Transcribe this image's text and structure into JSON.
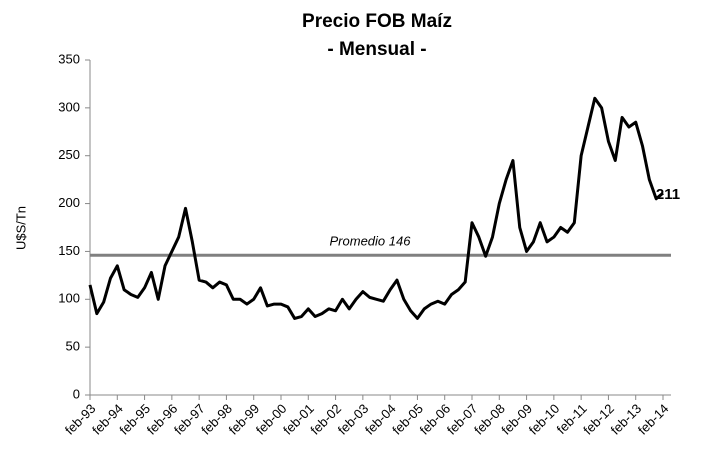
{
  "chart_data": {
    "type": "line",
    "title": "Precio FOB Maíz",
    "subtitle": "- Mensual -",
    "y_label": "U$S/Tn",
    "categories": [
      "feb-93",
      null,
      null,
      null,
      "feb-94",
      null,
      null,
      null,
      "feb-95",
      null,
      null,
      null,
      "feb-96",
      null,
      null,
      null,
      "feb-97",
      null,
      null,
      null,
      "feb-98",
      null,
      null,
      null,
      "feb-99",
      null,
      null,
      null,
      "feb-00",
      null,
      null,
      null,
      "feb-01",
      null,
      null,
      null,
      "feb-02",
      null,
      null,
      null,
      "feb-03",
      null,
      null,
      null,
      "feb-04",
      null,
      null,
      null,
      "feb-05",
      null,
      null,
      null,
      "feb-06",
      null,
      null,
      null,
      "feb-07",
      null,
      null,
      null,
      "feb-08",
      null,
      null,
      null,
      "feb-09",
      null,
      null,
      null,
      "feb-10",
      null,
      null,
      null,
      "feb-11",
      null,
      null,
      null,
      "feb-12",
      null,
      null,
      null,
      "feb-13",
      null,
      null,
      null,
      "feb-14"
    ],
    "series": [
      {
        "name": "Precio FOB Maíz",
        "color": "#000000",
        "values": [
          115,
          85,
          97,
          122,
          135,
          110,
          105,
          102,
          112,
          128,
          100,
          135,
          150,
          165,
          195,
          160,
          120,
          118,
          112,
          118,
          115,
          100,
          100,
          95,
          100,
          112,
          93,
          95,
          95,
          92,
          80,
          82,
          90,
          82,
          85,
          90,
          88,
          100,
          90,
          100,
          108,
          102,
          100,
          98,
          110,
          120,
          100,
          88,
          80,
          90,
          95,
          98,
          95,
          105,
          110,
          118,
          180,
          165,
          145,
          165,
          200,
          225,
          245,
          175,
          150,
          160,
          180,
          160,
          165,
          175,
          170,
          180,
          250,
          280,
          310,
          300,
          265,
          245,
          290,
          280,
          285,
          260,
          225,
          205,
          211
        ],
        "end_label": "211"
      }
    ],
    "reference_line": {
      "value": 146,
      "label": "Promedio 146",
      "color": "#808080"
    },
    "ylim": [
      0,
      350
    ],
    "yticks": [
      0,
      50,
      100,
      150,
      200,
      250,
      300,
      350
    ],
    "grid": false
  }
}
